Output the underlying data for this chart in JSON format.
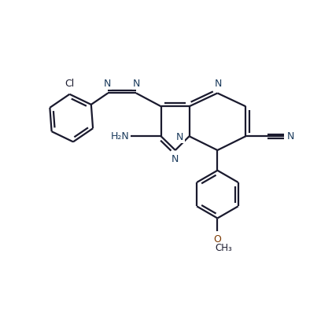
{
  "bg_color": "#ffffff",
  "bond_color": "#1a1a2e",
  "n_color": "#1a3a5c",
  "o_color": "#7a3800",
  "cl_color": "#1a1a2e",
  "line_width": 1.6,
  "figsize": [
    4.22,
    3.93
  ],
  "dpi": 100,
  "xlim": [
    0,
    10
  ],
  "ylim": [
    0,
    9.3
  ]
}
